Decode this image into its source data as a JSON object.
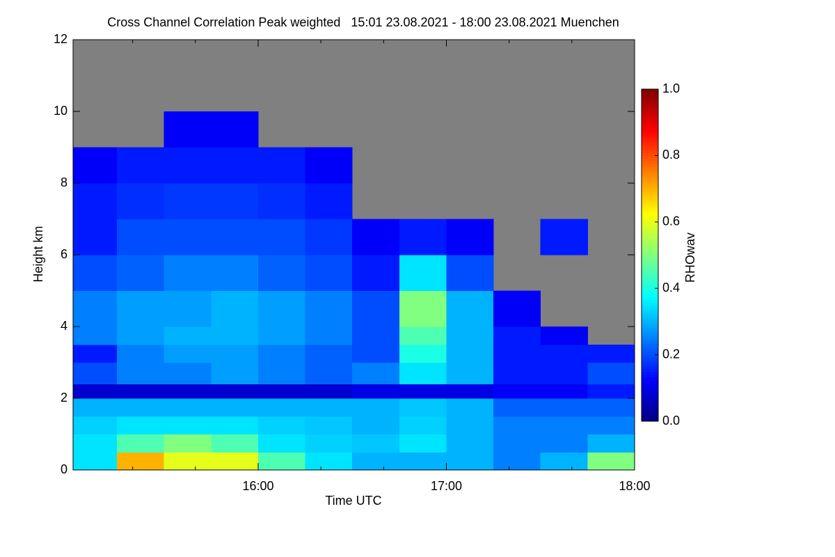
{
  "chart_data": {
    "type": "heatmap",
    "title": "Cross Channel Correlation Peak weighted   15:01 23.08.2021 - 18:00 23.08.2021 Muenchen",
    "x_label": "Time UTC",
    "y_label": "Height km",
    "colorbar_label": "RHOwav",
    "colormap": "jet",
    "nodata_color": "#808080",
    "xbins": [
      15.0167,
      15.25,
      15.5,
      15.75,
      16.0,
      16.25,
      16.5,
      16.75,
      17.0,
      17.25,
      17.5,
      17.75,
      18.0
    ],
    "ybins": [
      0,
      0.5,
      1,
      1.5,
      2,
      2.4,
      3,
      3.5,
      4,
      5,
      6,
      7,
      8,
      9,
      10,
      12
    ],
    "values": [
      [
        0.35,
        0.7,
        0.6,
        0.6,
        0.45,
        0.35,
        0.3,
        0.3,
        0.3,
        0.25,
        0.3,
        0.5
      ],
      [
        0.35,
        0.45,
        0.5,
        0.45,
        0.35,
        0.33,
        0.32,
        0.35,
        0.3,
        0.25,
        0.25,
        0.3
      ],
      [
        0.33,
        0.35,
        0.35,
        0.35,
        0.33,
        0.32,
        0.3,
        0.33,
        0.3,
        0.25,
        0.25,
        0.25
      ],
      [
        0.3,
        0.3,
        0.3,
        0.3,
        0.3,
        0.3,
        0.3,
        0.32,
        0.3,
        0.22,
        0.22,
        0.22
      ],
      [
        0.08,
        0.08,
        0.08,
        0.08,
        0.08,
        0.08,
        0.1,
        0.1,
        0.1,
        0.12,
        0.12,
        0.15
      ],
      [
        0.2,
        0.25,
        0.25,
        0.28,
        0.25,
        0.22,
        0.25,
        0.35,
        0.3,
        0.15,
        0.15,
        0.2
      ],
      [
        0.15,
        0.25,
        0.28,
        0.28,
        0.25,
        0.22,
        0.2,
        0.4,
        0.3,
        0.15,
        0.15,
        0.15
      ],
      [
        0.25,
        0.28,
        0.3,
        0.3,
        0.28,
        0.25,
        0.2,
        0.45,
        0.3,
        0.15,
        0.12,
        null
      ],
      [
        0.25,
        0.28,
        0.28,
        0.3,
        0.28,
        0.25,
        0.2,
        0.5,
        0.3,
        0.12,
        null,
        null
      ],
      [
        0.2,
        0.22,
        0.25,
        0.25,
        0.22,
        0.2,
        0.15,
        0.35,
        0.2,
        null,
        null,
        null
      ],
      [
        0.15,
        0.2,
        0.2,
        0.2,
        0.2,
        0.18,
        0.12,
        0.15,
        0.12,
        null,
        0.15,
        null
      ],
      [
        0.15,
        0.17,
        0.18,
        0.18,
        0.17,
        0.15,
        null,
        null,
        null,
        null,
        null,
        null
      ],
      [
        0.12,
        0.15,
        0.15,
        0.15,
        0.15,
        0.12,
        null,
        null,
        null,
        null,
        null,
        null
      ],
      [
        null,
        null,
        0.12,
        0.12,
        null,
        null,
        null,
        null,
        null,
        null,
        null,
        null
      ],
      [
        null,
        null,
        null,
        null,
        null,
        null,
        null,
        null,
        null,
        null,
        null,
        null
      ]
    ],
    "xlim": [
      15.0167,
      18.0
    ],
    "xticks": [
      {
        "value": 16,
        "label": "16:00"
      },
      {
        "value": 17,
        "label": "17:00"
      },
      {
        "value": 18,
        "label": "18:00"
      }
    ],
    "xminorticks": [
      15.3333,
      15.6667,
      16.3333,
      16.6667,
      17.3333,
      17.6667
    ],
    "ylim": [
      0,
      12
    ],
    "yticks": [
      0,
      2,
      4,
      6,
      8,
      10,
      12
    ],
    "clim": [
      0,
      1
    ],
    "cticks": [
      {
        "value": 0,
        "label": "0.0"
      },
      {
        "value": 0.2,
        "label": "0.2"
      },
      {
        "value": 0.4,
        "label": "0.4"
      },
      {
        "value": 0.6,
        "label": "0.6"
      },
      {
        "value": 0.8,
        "label": "0.8"
      },
      {
        "value": 1,
        "label": "1.0"
      }
    ]
  }
}
